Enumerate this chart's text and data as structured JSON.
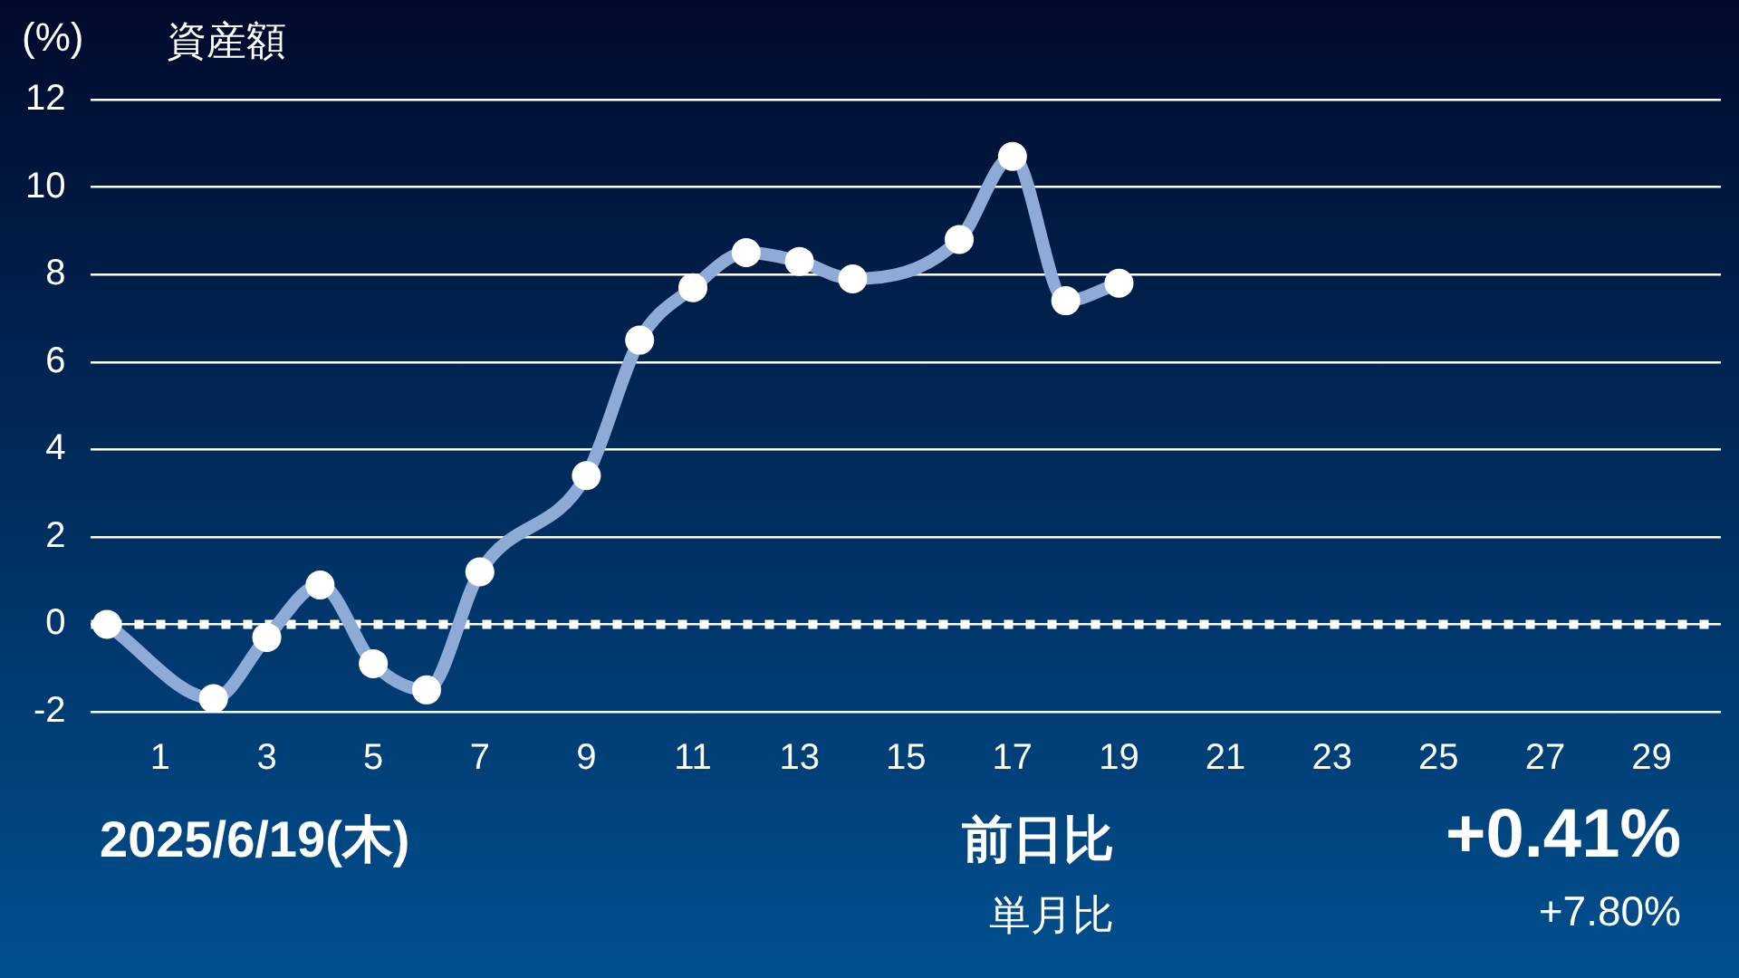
{
  "chart_data": {
    "type": "line",
    "title": "資産額",
    "ylabel": "(%)",
    "x": [
      0,
      2,
      3,
      4,
      5,
      6,
      7,
      9,
      10,
      11,
      12,
      13,
      14,
      16,
      17,
      18,
      19
    ],
    "series": [
      {
        "color": "#8eaad6",
        "values": [
          0,
          -1.7,
          -0.3,
          0.9,
          -0.9,
          -1.5,
          1.2,
          3.4,
          6.5,
          7.7,
          8.5,
          8.3,
          7.9,
          8.8,
          10.7,
          7.4,
          7.8
        ]
      }
    ],
    "xlim": [
      -0.3,
      30.3
    ],
    "xticks": [
      1,
      3,
      5,
      7,
      9,
      11,
      13,
      15,
      17,
      19,
      21,
      23,
      25,
      27,
      29
    ],
    "ylim": [
      -2,
      12
    ],
    "yticks": [
      -2,
      0,
      2,
      4,
      6,
      8,
      10,
      12
    ],
    "grid": "y",
    "legend": false,
    "marker": "circle",
    "line_style": "solid",
    "ref_lines": [
      {
        "axis": "y",
        "value": 0,
        "color": "#ffffff",
        "line_style": "dotted"
      }
    ],
    "annotations": [
      "2025/6/19(木)",
      "前日比",
      "+0.41%",
      "単月比",
      "+7.80%"
    ]
  }
}
